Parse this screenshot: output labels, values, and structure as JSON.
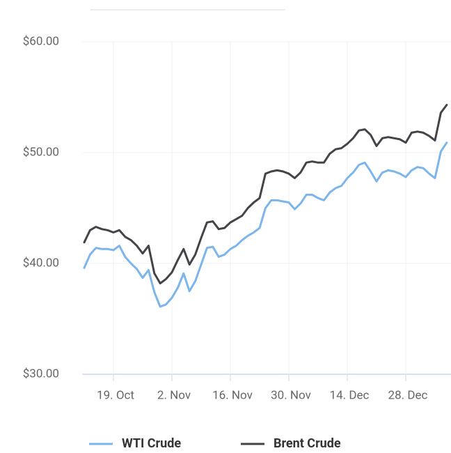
{
  "chart_data": {
    "type": "line",
    "categories": [
      null,
      null,
      null,
      null,
      null,
      "19. Oct",
      null,
      null,
      null,
      null,
      null,
      null,
      null,
      null,
      null,
      "2. Nov",
      null,
      null,
      null,
      null,
      null,
      null,
      null,
      null,
      null,
      "16. Nov",
      null,
      null,
      null,
      null,
      null,
      null,
      null,
      null,
      null,
      "30. Nov",
      null,
      null,
      null,
      null,
      null,
      null,
      null,
      null,
      null,
      "14. Dec",
      null,
      null,
      null,
      null,
      null,
      null,
      null,
      null,
      null,
      "28. Dec",
      null,
      null,
      null,
      null,
      null,
      null,
      null
    ],
    "series": [
      {
        "name": "WTI Crude",
        "color": "#7cb5ec",
        "values": [
          39.6,
          40.8,
          41.4,
          41.3,
          41.3,
          41.2,
          41.6,
          40.6,
          40.0,
          39.5,
          38.7,
          39.4,
          37.4,
          36.1,
          36.3,
          36.9,
          37.8,
          39.1,
          37.5,
          38.4,
          39.9,
          41.4,
          41.5,
          40.6,
          40.8,
          41.3,
          41.6,
          42.1,
          42.5,
          42.8,
          43.2,
          45.0,
          45.7,
          45.7,
          45.6,
          45.5,
          44.9,
          45.4,
          46.2,
          46.2,
          45.9,
          45.7,
          46.4,
          46.8,
          47.0,
          47.7,
          48.2,
          48.9,
          49.1,
          48.3,
          47.4,
          48.2,
          48.4,
          48.3,
          48.1,
          47.8,
          48.4,
          48.7,
          48.6,
          48.1,
          47.7,
          50.1,
          50.9
        ]
      },
      {
        "name": "Brent Crude",
        "color": "#434348",
        "values": [
          41.9,
          43.0,
          43.3,
          43.1,
          43.0,
          42.8,
          43.0,
          42.4,
          42.1,
          41.6,
          40.9,
          41.6,
          39.1,
          38.2,
          38.6,
          39.2,
          40.3,
          41.3,
          39.9,
          40.8,
          42.3,
          43.7,
          43.8,
          43.1,
          43.2,
          43.7,
          44.0,
          44.3,
          45.0,
          45.5,
          45.9,
          48.1,
          48.3,
          48.4,
          48.3,
          48.1,
          47.7,
          48.2,
          49.1,
          49.2,
          49.1,
          49.1,
          49.9,
          50.3,
          50.4,
          50.8,
          51.3,
          52.0,
          52.1,
          51.6,
          50.6,
          51.3,
          51.4,
          51.3,
          51.2,
          50.9,
          51.8,
          51.9,
          51.8,
          51.5,
          51.1,
          53.6,
          54.3
        ]
      }
    ],
    "ylim": [
      30,
      60
    ],
    "yticks": [
      {
        "value": 30,
        "label": "$30.00"
      },
      {
        "value": 40,
        "label": "$40.00"
      },
      {
        "value": 50,
        "label": "$50.00"
      },
      {
        "value": 60,
        "label": "$60.00"
      }
    ],
    "grid": true,
    "legend": "bottom"
  }
}
